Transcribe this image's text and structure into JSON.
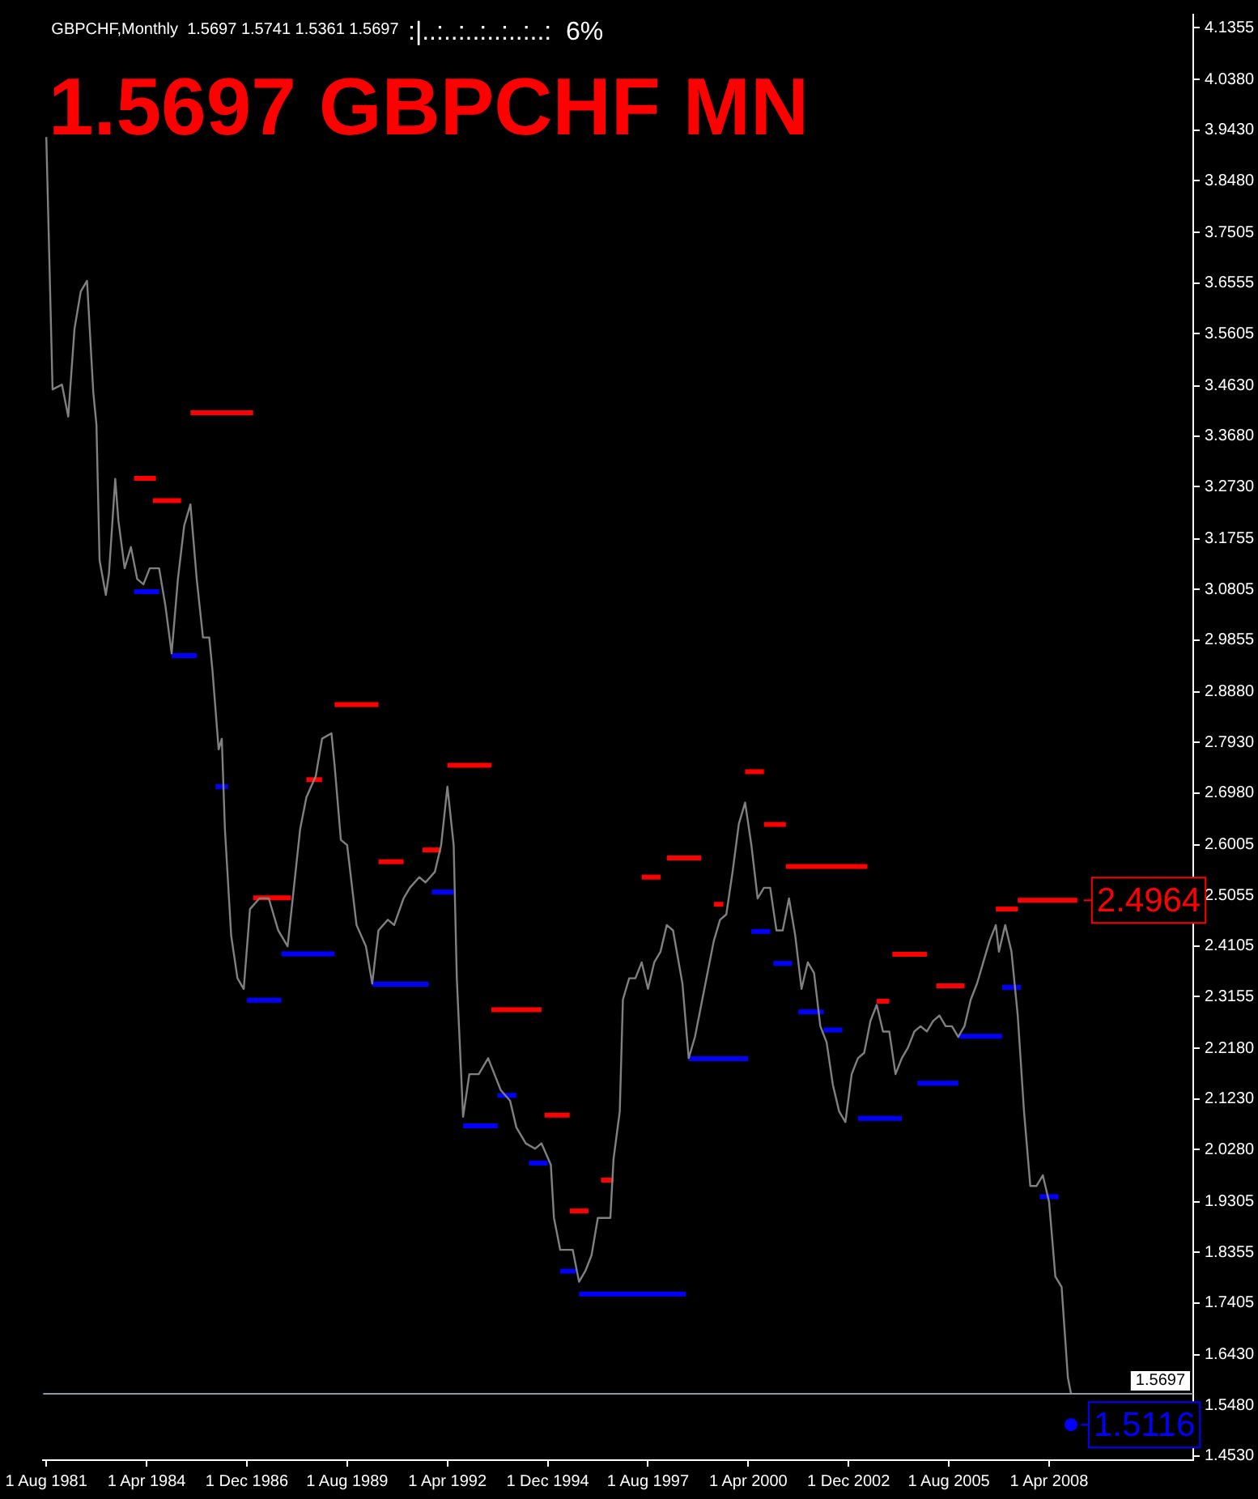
{
  "chart_data": {
    "type": "line",
    "title": "1.5697 GBPCHF MN",
    "subtitle": "GBPCHF,Monthly  1.5697 1.5741 1.5361 1.5697",
    "annotations": [
      ":|..:..:..:..:..:..:  6%",
      {
        "text": "2.4964",
        "x": "2009-01",
        "y": 2.4964
      },
      {
        "text": "1.5116",
        "x": "2008-12",
        "y": 1.5116
      }
    ],
    "xlim": [
      "1981-07",
      "2012-02"
    ],
    "xticks": [
      {
        "value": "1981-08",
        "label": "1 Aug 1981"
      },
      {
        "value": "1984-04",
        "label": "1 Apr 1984"
      },
      {
        "value": "1986-12",
        "label": "1 Dec 1986"
      },
      {
        "value": "1989-08",
        "label": "1 Aug 1989"
      },
      {
        "value": "1992-04",
        "label": "1 Apr 1992"
      },
      {
        "value": "1994-12",
        "label": "1 Dec 1994"
      },
      {
        "value": "1997-08",
        "label": "1 Aug 1997"
      },
      {
        "value": "2000-04",
        "label": "1 Apr 2000"
      },
      {
        "value": "2002-12",
        "label": "1 Dec 2002"
      },
      {
        "value": "2005-08",
        "label": "1 Aug 2005"
      },
      {
        "value": "2008-04",
        "label": "1 Apr 2008"
      }
    ],
    "ylim": [
      1.445,
      4.16
    ],
    "yticks": [
      {
        "value": 4.1355,
        "label": "4.1355"
      },
      {
        "value": 4.038,
        "label": "4.0380"
      },
      {
        "value": 3.943,
        "label": "3.9430"
      },
      {
        "value": 3.848,
        "label": "3.8480"
      },
      {
        "value": 3.7505,
        "label": "3.7505"
      },
      {
        "value": 3.6555,
        "label": "3.6555"
      },
      {
        "value": 3.5605,
        "label": "3.5605"
      },
      {
        "value": 3.463,
        "label": "3.4630"
      },
      {
        "value": 3.368,
        "label": "3.3680"
      },
      {
        "value": 3.273,
        "label": "3.2730"
      },
      {
        "value": 3.1755,
        "label": "3.1755"
      },
      {
        "value": 3.0805,
        "label": "3.0805"
      },
      {
        "value": 2.9855,
        "label": "2.9855"
      },
      {
        "value": 2.888,
        "label": "2.8880"
      },
      {
        "value": 2.793,
        "label": "2.7930"
      },
      {
        "value": 2.698,
        "label": "2.6980"
      },
      {
        "value": 2.6005,
        "label": "2.6005"
      },
      {
        "value": 2.5055,
        "label": "2.5055"
      },
      {
        "value": 2.4105,
        "label": "2.4105"
      },
      {
        "value": 2.3155,
        "label": "2.3155"
      },
      {
        "value": 2.218,
        "label": "2.2180"
      },
      {
        "value": 2.123,
        "label": "2.1230"
      },
      {
        "value": 2.028,
        "label": "2.0280"
      },
      {
        "value": 1.9305,
        "label": "1.9305"
      },
      {
        "value": 1.8355,
        "label": "1.8355"
      },
      {
        "value": 1.7405,
        "label": "1.7405"
      },
      {
        "value": 1.643,
        "label": "1.6430"
      },
      {
        "value": 1.548,
        "label": "1.5480"
      },
      {
        "value": 1.453,
        "label": "1.4530"
      }
    ],
    "ref_lines": [
      {
        "axis": "y",
        "value": 1.5697,
        "label": "1.5697",
        "color": "#8c9aa8"
      }
    ],
    "legend": false,
    "grid": false,
    "series": [
      {
        "color": "#808080",
        "x": [
          "1981-08",
          "1981-10",
          "1982-01",
          "1982-03",
          "1982-05",
          "1982-07",
          "1982-09",
          "1982-11",
          "1982-12",
          "1983-01",
          "1983-03",
          "1983-04",
          "1983-06",
          "1983-07",
          "1983-09",
          "1983-11",
          "1984-01",
          "1984-03",
          "1984-05",
          "1984-08",
          "1984-10",
          "1984-12",
          "1985-02",
          "1985-04",
          "1985-06",
          "1985-08",
          "1985-10",
          "1985-12",
          "1986-01",
          "1986-03",
          "1986-04",
          "1986-05",
          "1986-07",
          "1986-09",
          "1986-11",
          "1987-01",
          "1987-04",
          "1987-07",
          "1987-10",
          "1988-01",
          "1988-03",
          "1988-05",
          "1988-07",
          "1988-10",
          "1988-12",
          "1989-03",
          "1989-04",
          "1989-06",
          "1989-08",
          "1989-11",
          "1990-02",
          "1990-04",
          "1990-06",
          "1990-09",
          "1990-11",
          "1991-02",
          "1991-04",
          "1991-07",
          "1991-09",
          "1991-12",
          "1992-02",
          "1992-04",
          "1992-06",
          "1992-07",
          "1992-09",
          "1992-11",
          "1993-02",
          "1993-05",
          "1993-07",
          "1993-09",
          "1993-12",
          "1994-02",
          "1994-05",
          "1994-08",
          "1994-10",
          "1995-01",
          "1995-02",
          "1995-04",
          "1995-06",
          "1995-08",
          "1995-10",
          "1995-12",
          "1996-02",
          "1996-04",
          "1996-06",
          "1996-08",
          "1996-09",
          "1996-11",
          "1996-12",
          "1997-02",
          "1997-04",
          "1997-06",
          "1997-08",
          "1997-10",
          "1997-12",
          "1998-02",
          "1998-04",
          "1998-07",
          "1998-09",
          "1998-11",
          "1999-01",
          "1999-03",
          "1999-05",
          "1999-07",
          "1999-09",
          "1999-11",
          "2000-01",
          "2000-03",
          "2000-05",
          "2000-07",
          "2000-09",
          "2000-11",
          "2001-01",
          "2001-03",
          "2001-05",
          "2001-07",
          "2001-09",
          "2001-11",
          "2002-01",
          "2002-03",
          "2002-05",
          "2002-07",
          "2002-09",
          "2002-11",
          "2003-01",
          "2003-03",
          "2003-05",
          "2003-07",
          "2003-09",
          "2003-11",
          "2004-01",
          "2004-03",
          "2004-05",
          "2004-07",
          "2004-09",
          "2004-11",
          "2005-01",
          "2005-03",
          "2005-05",
          "2005-07",
          "2005-09",
          "2005-11",
          "2006-01",
          "2006-03",
          "2006-05",
          "2006-07",
          "2006-09",
          "2006-11",
          "2006-12",
          "2007-02",
          "2007-04",
          "2007-06",
          "2007-08",
          "2007-10",
          "2007-12",
          "2008-02",
          "2008-04",
          "2008-06",
          "2008-08",
          "2008-10",
          "2008-11"
        ],
        "values": [
          3.93,
          3.456,
          3.465,
          3.405,
          3.57,
          3.64,
          3.66,
          3.45,
          3.39,
          3.135,
          3.07,
          3.11,
          3.288,
          3.21,
          3.12,
          3.16,
          3.1,
          3.09,
          3.12,
          3.12,
          3.05,
          2.96,
          3.1,
          3.2,
          3.24,
          3.1,
          2.99,
          2.99,
          2.93,
          2.78,
          2.8,
          2.63,
          2.43,
          2.35,
          2.33,
          2.48,
          2.5,
          2.5,
          2.44,
          2.41,
          2.52,
          2.63,
          2.69,
          2.73,
          2.8,
          2.81,
          2.75,
          2.61,
          2.6,
          2.45,
          2.41,
          2.34,
          2.44,
          2.46,
          2.45,
          2.5,
          2.52,
          2.54,
          2.53,
          2.55,
          2.6,
          2.71,
          2.6,
          2.35,
          2.09,
          2.17,
          2.17,
          2.2,
          2.17,
          2.14,
          2.12,
          2.07,
          2.04,
          2.03,
          2.04,
          2.0,
          1.9,
          1.84,
          1.84,
          1.84,
          1.78,
          1.8,
          1.83,
          1.9,
          1.9,
          1.9,
          2.01,
          2.1,
          2.31,
          2.35,
          2.35,
          2.38,
          2.33,
          2.38,
          2.4,
          2.45,
          2.44,
          2.34,
          2.2,
          2.24,
          2.3,
          2.36,
          2.42,
          2.46,
          2.47,
          2.55,
          2.64,
          2.68,
          2.6,
          2.5,
          2.52,
          2.52,
          2.44,
          2.44,
          2.5,
          2.43,
          2.33,
          2.38,
          2.36,
          2.26,
          2.23,
          2.15,
          2.1,
          2.08,
          2.17,
          2.2,
          2.21,
          2.27,
          2.3,
          2.25,
          2.25,
          2.17,
          2.2,
          2.22,
          2.25,
          2.26,
          2.25,
          2.27,
          2.28,
          2.26,
          2.26,
          2.24,
          2.26,
          2.31,
          2.34,
          2.38,
          2.42,
          2.45,
          2.4,
          2.45,
          2.4,
          2.28,
          2.1,
          1.96,
          1.96,
          1.98,
          1.93,
          1.79,
          1.77,
          1.6,
          1.5697
        ]
      },
      {
        "color": "#ff0000",
        "x": [
          "1983-12",
          "1984-07"
        ],
        "values": [
          3.289,
          3.289
        ]
      },
      {
        "color": "#ff0000",
        "x": [
          "1984-06",
          "1985-03"
        ],
        "values": [
          3.247,
          3.247
        ]
      },
      {
        "color": "#ff0000",
        "x": [
          "1985-06",
          "1987-02"
        ],
        "values": [
          3.412,
          3.412
        ]
      },
      {
        "color": "#ff0000",
        "x": [
          "1987-02",
          "1988-02"
        ],
        "values": [
          2.501,
          2.501
        ]
      },
      {
        "color": "#ff0000",
        "x": [
          "1988-07",
          "1988-12"
        ],
        "values": [
          2.723,
          2.723
        ]
      },
      {
        "color": "#ff0000",
        "x": [
          "1989-04",
          "1990-06"
        ],
        "values": [
          2.864,
          2.864
        ]
      },
      {
        "color": "#ff0000",
        "x": [
          "1990-06",
          "1991-02"
        ],
        "values": [
          2.569,
          2.569
        ]
      },
      {
        "color": "#ff0000",
        "x": [
          "1991-08",
          "1992-02"
        ],
        "values": [
          2.591,
          2.591
        ]
      },
      {
        "color": "#ff0000",
        "x": [
          "1992-04",
          "1993-06"
        ],
        "values": [
          2.75,
          2.75
        ]
      },
      {
        "color": "#ff0000",
        "x": [
          "1993-06",
          "1994-10"
        ],
        "values": [
          2.291,
          2.291
        ]
      },
      {
        "color": "#ff0000",
        "x": [
          "1994-11",
          "1995-07"
        ],
        "values": [
          2.093,
          2.093
        ]
      },
      {
        "color": "#ff0000",
        "x": [
          "1995-07",
          "1996-01"
        ],
        "values": [
          1.913,
          1.913
        ]
      },
      {
        "color": "#ff0000",
        "x": [
          "1996-05",
          "1996-09"
        ],
        "values": [
          1.971,
          1.971
        ]
      },
      {
        "color": "#ff0000",
        "x": [
          "1997-06",
          "1997-12"
        ],
        "values": [
          2.54,
          2.54
        ]
      },
      {
        "color": "#ff0000",
        "x": [
          "1998-02",
          "1999-01"
        ],
        "values": [
          2.576,
          2.576
        ]
      },
      {
        "color": "#ff0000",
        "x": [
          "1999-05",
          "1999-08"
        ],
        "values": [
          2.489,
          2.489
        ]
      },
      {
        "color": "#ff0000",
        "x": [
          "2000-03",
          "2000-09"
        ],
        "values": [
          2.738,
          2.738
        ]
      },
      {
        "color": "#ff0000",
        "x": [
          "2000-09",
          "2001-04"
        ],
        "values": [
          2.639,
          2.639
        ]
      },
      {
        "color": "#ff0000",
        "x": [
          "2001-04",
          "2003-06"
        ],
        "values": [
          2.56,
          2.56
        ]
      },
      {
        "color": "#ff0000",
        "x": [
          "2003-09",
          "2004-01"
        ],
        "values": [
          2.307,
          2.307
        ]
      },
      {
        "color": "#ff0000",
        "x": [
          "2004-02",
          "2005-01"
        ],
        "values": [
          2.395,
          2.395
        ]
      },
      {
        "color": "#ff0000",
        "x": [
          "2005-04",
          "2006-01"
        ],
        "values": [
          2.336,
          2.336
        ]
      },
      {
        "color": "#ff0000",
        "x": [
          "2006-11",
          "2007-06"
        ],
        "values": [
          2.48,
          2.48
        ]
      },
      {
        "color": "#ff0000",
        "x": [
          "2007-06",
          "2009-01"
        ],
        "values": [
          2.4964,
          2.4964
        ]
      },
      {
        "color": "#0000ff",
        "x": [
          "1983-12",
          "1984-08"
        ],
        "values": [
          3.076,
          3.076
        ]
      },
      {
        "color": "#0000ff",
        "x": [
          "1984-12",
          "1985-08"
        ],
        "values": [
          2.956,
          2.956
        ]
      },
      {
        "color": "#0000ff",
        "x": [
          "1986-02",
          "1986-06"
        ],
        "values": [
          2.71,
          2.71
        ]
      },
      {
        "color": "#0000ff",
        "x": [
          "1986-12",
          "1987-11"
        ],
        "values": [
          2.309,
          2.309
        ]
      },
      {
        "color": "#0000ff",
        "x": [
          "1987-11",
          "1989-04"
        ],
        "values": [
          2.396,
          2.396
        ]
      },
      {
        "color": "#0000ff",
        "x": [
          "1990-04",
          "1991-10"
        ],
        "values": [
          2.339,
          2.339
        ]
      },
      {
        "color": "#0000ff",
        "x": [
          "1991-11",
          "1992-06"
        ],
        "values": [
          2.512,
          2.512
        ]
      },
      {
        "color": "#0000ff",
        "x": [
          "1992-09",
          "1993-08"
        ],
        "values": [
          2.073,
          2.073
        ]
      },
      {
        "color": "#0000ff",
        "x": [
          "1993-08",
          "1994-02"
        ],
        "values": [
          2.13,
          2.13
        ]
      },
      {
        "color": "#0000ff",
        "x": [
          "1994-06",
          "1994-12"
        ],
        "values": [
          2.003,
          2.003
        ]
      },
      {
        "color": "#0000ff",
        "x": [
          "1995-04",
          "1995-09"
        ],
        "values": [
          1.8,
          1.8
        ]
      },
      {
        "color": "#0000ff",
        "x": [
          "1995-10",
          "1998-08"
        ],
        "values": [
          1.757,
          1.757
        ]
      },
      {
        "color": "#0000ff",
        "x": [
          "1998-09",
          "2000-04"
        ],
        "values": [
          2.199,
          2.199
        ]
      },
      {
        "color": "#0000ff",
        "x": [
          "2000-05",
          "2000-11"
        ],
        "values": [
          2.438,
          2.438
        ]
      },
      {
        "color": "#0000ff",
        "x": [
          "2000-12",
          "2001-06"
        ],
        "values": [
          2.378,
          2.378
        ]
      },
      {
        "color": "#0000ff",
        "x": [
          "2001-08",
          "2002-04"
        ],
        "values": [
          2.287,
          2.287
        ]
      },
      {
        "color": "#0000ff",
        "x": [
          "2002-04",
          "2002-10"
        ],
        "values": [
          2.253,
          2.253
        ]
      },
      {
        "color": "#0000ff",
        "x": [
          "2003-03",
          "2004-05"
        ],
        "values": [
          2.087,
          2.087
        ]
      },
      {
        "color": "#0000ff",
        "x": [
          "2004-10",
          "2005-11"
        ],
        "values": [
          2.153,
          2.153
        ]
      },
      {
        "color": "#0000ff",
        "x": [
          "2005-11",
          "2007-01"
        ],
        "values": [
          2.241,
          2.241
        ]
      },
      {
        "color": "#0000ff",
        "x": [
          "2007-01",
          "2007-07"
        ],
        "values": [
          2.333,
          2.333
        ]
      },
      {
        "color": "#0000ff",
        "x": [
          "2008-01",
          "2008-07"
        ],
        "values": [
          1.94,
          1.94
        ]
      },
      {
        "color": "#0000ff",
        "marker": "circle",
        "x": [
          "2008-11"
        ],
        "values": [
          1.5116
        ]
      }
    ]
  }
}
